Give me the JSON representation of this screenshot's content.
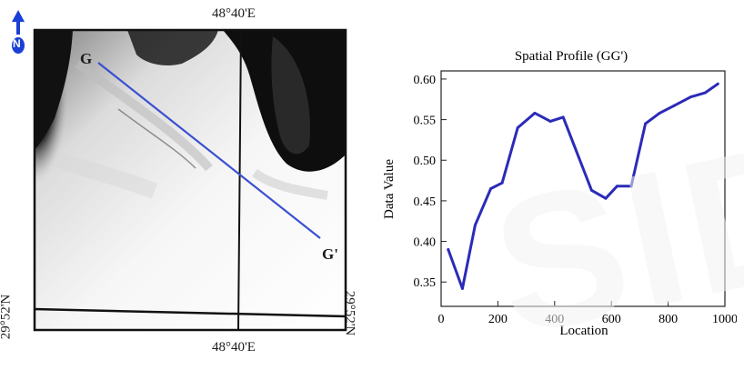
{
  "map": {
    "north_label": "N",
    "lon_top": "48°40'E",
    "lon_bottom": "48°40'E",
    "lat_left": "29°52'N",
    "lat_right": "29°52'N",
    "point_start": "G",
    "point_end": "G'",
    "colors": {
      "profile_line": "#3a4fd0",
      "north_arrow": "#1a3fd6"
    }
  },
  "watermark": "SID",
  "chart_data": {
    "type": "line",
    "title": "Spatial Profile (GG')",
    "xlabel": "Location",
    "ylabel": "Data Value",
    "xlim": [
      0,
      1000
    ],
    "ylim": [
      0.32,
      0.61
    ],
    "xticks": [
      0,
      200,
      400,
      600,
      800,
      1000
    ],
    "yticks": [
      0.35,
      0.4,
      0.45,
      0.5,
      0.55,
      0.6
    ],
    "xtick_labels": [
      "0",
      "200",
      "400",
      "600",
      "800",
      "1000"
    ],
    "ytick_labels": [
      "0.35",
      "0.40",
      "0.45",
      "0.50",
      "0.55",
      "0.60"
    ],
    "grid": false,
    "series": [
      {
        "color": "#2b2bb8",
        "x": [
          25,
          75,
          120,
          175,
          215,
          270,
          330,
          385,
          430,
          530,
          580,
          620,
          670,
          720,
          770,
          820,
          880,
          930,
          975
        ],
        "y": [
          0.39,
          0.342,
          0.42,
          0.465,
          0.472,
          0.54,
          0.558,
          0.548,
          0.553,
          0.463,
          0.453,
          0.468,
          0.468,
          0.545,
          0.558,
          0.567,
          0.578,
          0.583,
          0.594
        ]
      }
    ]
  }
}
